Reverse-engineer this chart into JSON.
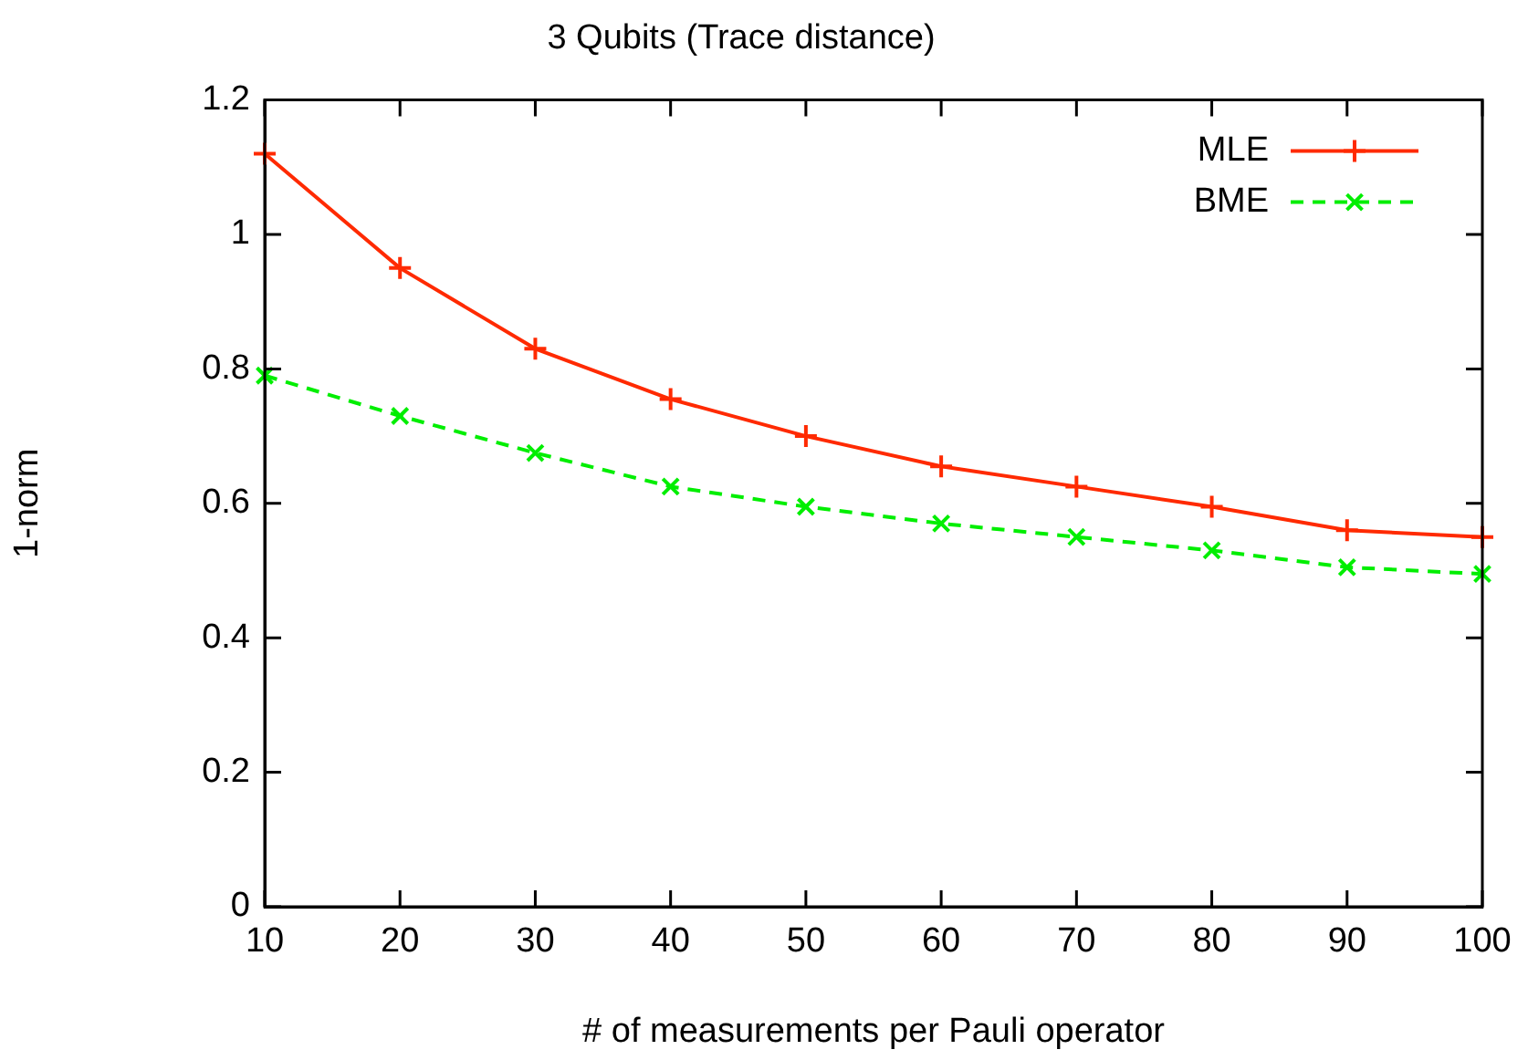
{
  "chart_data": {
    "type": "line",
    "title": "3 Qubits (Trace distance)",
    "xlabel": "# of measurements per Pauli operator",
    "ylabel": "1-norm",
    "x": [
      10,
      20,
      30,
      40,
      50,
      60,
      70,
      80,
      90,
      100
    ],
    "series": [
      {
        "name": "MLE",
        "color": "#ff2a00",
        "line_style": "solid",
        "marker": "cross",
        "values": [
          1.12,
          0.95,
          0.83,
          0.755,
          0.7,
          0.655,
          0.625,
          0.595,
          0.56,
          0.55
        ]
      },
      {
        "name": "BME",
        "color": "#00ee00",
        "line_style": "dashed",
        "marker": "x",
        "values": [
          0.79,
          0.73,
          0.675,
          0.625,
          0.595,
          0.57,
          0.55,
          0.53,
          0.505,
          0.495
        ]
      }
    ],
    "xlim": [
      10,
      100
    ],
    "xticks": [
      10,
      20,
      30,
      40,
      50,
      60,
      70,
      80,
      90,
      100
    ],
    "ylim": [
      0,
      1.2
    ],
    "yticks": [
      0,
      0.2,
      0.4,
      0.6,
      0.8,
      1,
      1.2
    ],
    "grid": false,
    "legend": "top right"
  }
}
